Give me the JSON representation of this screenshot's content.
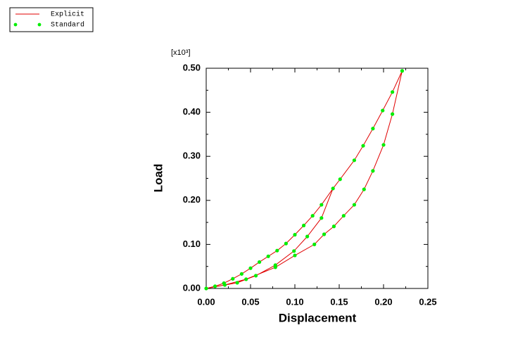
{
  "chart_data": {
    "type": "line",
    "y_multiplier": "[x10³]",
    "xlabel": "Displacement",
    "ylabel": "Load",
    "xlim": [
      0,
      0.25
    ],
    "ylim": [
      0,
      0.5
    ],
    "xticks": [
      {
        "value": 0,
        "label": "0.00"
      },
      0.05,
      {
        "value": 0.1,
        "label": "0.10"
      },
      0.15,
      {
        "value": 0.2,
        "label": "0.20"
      },
      0.25
    ],
    "yticks": [
      {
        "value": 0,
        "label": "0.00"
      },
      {
        "value": 0.1,
        "label": "0.10"
      },
      {
        "value": 0.2,
        "label": "0.20"
      },
      {
        "value": 0.3,
        "label": "0.30"
      },
      {
        "value": 0.4,
        "label": "0.40"
      },
      {
        "value": 0.5,
        "label": "0.50"
      }
    ],
    "legend": "top-left",
    "series": [
      {
        "name": "Explicit",
        "color": "#e00000",
        "style": "line",
        "x": [
          0,
          0.01,
          0.02,
          0.03,
          0.04,
          0.05,
          0.06,
          0.07,
          0.08,
          0.09,
          0.1,
          0.11,
          0.12,
          0.13,
          0.143,
          0.13,
          0.114,
          0.099,
          0.078,
          0.056,
          0.035,
          0,
          0.035,
          0.056,
          0.078,
          0.099,
          0.114,
          0.13,
          0.143,
          0.151,
          0.167,
          0.177,
          0.188,
          0.199,
          0.21,
          0.221,
          0.21,
          0.2,
          0.188,
          0.178,
          0.167,
          0.155,
          0.144,
          0.133,
          0.122,
          0.1,
          0.078,
          0.045,
          0.021,
          0
        ],
        "values": [
          0,
          0.005,
          0.012,
          0.022,
          0.033,
          0.046,
          0.06,
          0.073,
          0.086,
          0.102,
          0.122,
          0.143,
          0.165,
          0.19,
          0.227,
          0.16,
          0.118,
          0.085,
          0.053,
          0.029,
          0.013,
          0,
          0.013,
          0.029,
          0.053,
          0.085,
          0.118,
          0.16,
          0.227,
          0.248,
          0.291,
          0.324,
          0.363,
          0.404,
          0.446,
          0.494,
          0.396,
          0.326,
          0.267,
          0.225,
          0.19,
          0.165,
          0.141,
          0.123,
          0.1,
          0.075,
          0.048,
          0.021,
          0.008,
          0
        ]
      },
      {
        "name": "Standard",
        "color": "#00ee00",
        "style": "markers",
        "x": [
          0,
          0.01,
          0.02,
          0.03,
          0.04,
          0.05,
          0.06,
          0.07,
          0.08,
          0.09,
          0.1,
          0.11,
          0.12,
          0.13,
          0.143,
          0.13,
          0.114,
          0.099,
          0.078,
          0.056,
          0.035,
          0.151,
          0.167,
          0.177,
          0.188,
          0.199,
          0.21,
          0.221,
          0.21,
          0.2,
          0.188,
          0.178,
          0.167,
          0.155,
          0.144,
          0.133,
          0.122,
          0.1,
          0.078,
          0.045,
          0.021
        ],
        "values": [
          0,
          0.005,
          0.012,
          0.022,
          0.033,
          0.046,
          0.06,
          0.073,
          0.086,
          0.102,
          0.122,
          0.143,
          0.165,
          0.19,
          0.227,
          0.16,
          0.118,
          0.085,
          0.053,
          0.029,
          0.013,
          0.248,
          0.291,
          0.324,
          0.363,
          0.404,
          0.446,
          0.494,
          0.396,
          0.326,
          0.267,
          0.225,
          0.19,
          0.165,
          0.141,
          0.123,
          0.1,
          0.075,
          0.048,
          0.021,
          0.008
        ]
      }
    ]
  }
}
